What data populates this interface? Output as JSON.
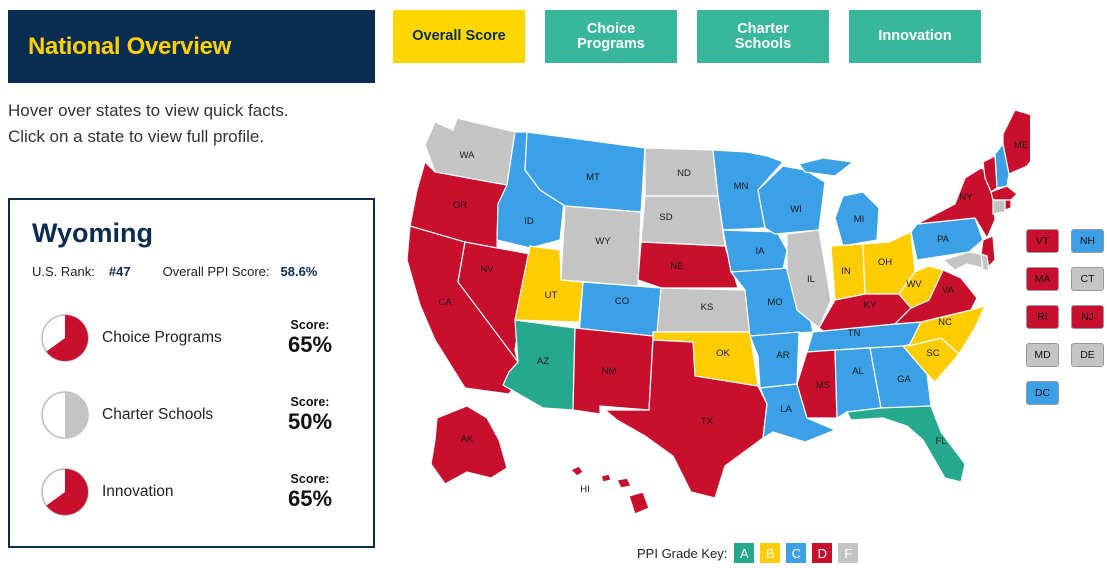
{
  "header": {
    "title": "National Overview"
  },
  "tabs": [
    {
      "label": "Overall Score",
      "active": true
    },
    {
      "label": "Choice Programs",
      "active": false
    },
    {
      "label": "Charter Schools",
      "active": false
    },
    {
      "label": "Innovation",
      "active": false
    }
  ],
  "instructions": {
    "line1": "Hover over states to view quick facts.",
    "line2": "Click on a state to view full profile."
  },
  "profile": {
    "state": "Wyoming",
    "rank_label": "U.S. Rank:",
    "rank_value": "#47",
    "ppi_label": "Overall PPI Score:",
    "ppi_value": "58.6%",
    "metrics": [
      {
        "label": "Choice Programs",
        "score_label": "Score:",
        "score": "65%",
        "fraction": 0.65,
        "color": "#c8102e"
      },
      {
        "label": "Charter Schools",
        "score_label": "Score:",
        "score": "50%",
        "fraction": 0.5,
        "color": "#c4c4c4"
      },
      {
        "label": "Innovation",
        "score_label": "Score:",
        "score": "65%",
        "fraction": 0.65,
        "color": "#c8102e"
      }
    ]
  },
  "grades": {
    "A": "#26a88e",
    "B": "#ffcc00",
    "C": "#3ba0e6",
    "D": "#c8102e",
    "F": "#c4c4c4"
  },
  "states": {
    "WA": "F",
    "OR": "D",
    "CA": "D",
    "NV": "D",
    "ID": "C",
    "MT": "C",
    "WY": "F",
    "UT": "B",
    "AZ": "A",
    "CO": "C",
    "NM": "D",
    "ND": "F",
    "SD": "F",
    "NE": "D",
    "KS": "F",
    "OK": "B",
    "TX": "D",
    "MN": "C",
    "IA": "C",
    "MO": "C",
    "AR": "C",
    "LA": "C",
    "WI": "C",
    "IL": "F",
    "MI": "C",
    "IN": "B",
    "OH": "B",
    "KY": "D",
    "TN": "C",
    "MS": "D",
    "AL": "C",
    "GA": "C",
    "FL": "A",
    "SC": "B",
    "NC": "B",
    "VA": "D",
    "WV": "B",
    "PA": "C",
    "NY": "D",
    "ME": "D",
    "AK": "D",
    "HI": "D",
    "VT": "D",
    "NH": "C",
    "MA": "D",
    "CT": "F",
    "RI": "D",
    "NJ": "D",
    "MD": "F",
    "DE": "F",
    "DC": "C"
  },
  "small_states": [
    "VT",
    "NH",
    "MA",
    "CT",
    "RI",
    "NJ",
    "MD",
    "DE",
    "DC"
  ],
  "grade_key": {
    "label": "PPI Grade Key:",
    "letters": [
      "A",
      "B",
      "C",
      "D",
      "F"
    ]
  }
}
